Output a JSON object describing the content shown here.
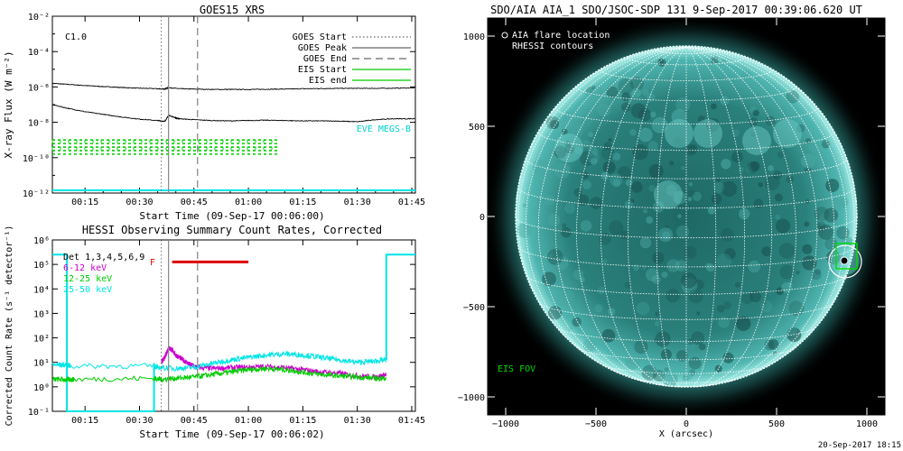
{
  "goes": {
    "title": "GOES15 XRS",
    "ylabel": "X-ray Flux (W m⁻²)",
    "xlabel": "Start Time (09-Sep-17 00:06:00)",
    "class_label": "C1.0",
    "eve_label": "EVE MEGS-B",
    "legend": [
      {
        "label": "GOES Start",
        "style": "dotted",
        "color": "#000000"
      },
      {
        "label": "GOES Peak",
        "style": "solid",
        "color": "#000000"
      },
      {
        "label": "GOES End",
        "style": "dashed",
        "color": "#000000"
      },
      {
        "label": "EIS Start",
        "style": "solid",
        "color": "#00cc00"
      },
      {
        "label": "EIS end",
        "style": "solid",
        "color": "#00cc00"
      }
    ]
  },
  "hessi": {
    "title": "HESSI Observing Summary Count Rates, Corrected",
    "ylabel": "Corrected Count Rate (s⁻¹ detector⁻¹)",
    "xlabel": "Start Time (09-Sep-17 00:06:02)",
    "flag_label": "F",
    "legend": [
      {
        "label": "Det 1,3,4,5,6,9",
        "color": "#000000"
      },
      {
        "label": "6-12 keV",
        "color": "#cc00cc"
      },
      {
        "label": "12-25 keV",
        "color": "#00cc00"
      },
      {
        "label": "25-50 keV",
        "color": "#00e5e5"
      }
    ]
  },
  "aia": {
    "title": "SDO/AIA AIA_1 SDO/JSOC-SDP 131  9-Sep-2017 00:39:06.620 UT",
    "legend1": "AIA flare location",
    "legend2": "RHESSI contours",
    "eis_fov": "EIS FOV",
    "xlabel": "X (arcsec)",
    "timestamp": "20-Sep-2017 18:15",
    "disk_color": "#2f8a86"
  },
  "chart_data": [
    {
      "type": "line",
      "title": "GOES15 XRS",
      "xlabel": "Start Time (09-Sep-17 00:06:00)",
      "ylabel": "X-ray Flux (W m-2)",
      "y_scale": "log",
      "ylim": [
        1e-12,
        0.01
      ],
      "xlim_minutes": [
        6,
        106
      ],
      "x_ticks": [
        "00:15",
        "00:30",
        "00:45",
        "01:00",
        "01:15",
        "01:30",
        "01:45"
      ],
      "y_ticks": [
        "10⁻¹²",
        "10⁻¹⁰",
        "10⁻⁸",
        "10⁻⁶",
        "10⁻⁴",
        "10⁻²"
      ],
      "y_tick_exponents": [
        -12,
        -10,
        -8,
        -6,
        -4,
        -2
      ],
      "series": [
        {
          "name": "long",
          "color": "#000000",
          "x": [
            6,
            10,
            15,
            20,
            25,
            30,
            35,
            37,
            38,
            41,
            45,
            50,
            55,
            60,
            65,
            70,
            75,
            80,
            85,
            90,
            95,
            100,
            106
          ],
          "log10_y": [
            -5.8,
            -5.85,
            -5.92,
            -5.98,
            -6.03,
            -6.07,
            -6.1,
            -6.12,
            -6.04,
            -6.1,
            -6.12,
            -6.14,
            -6.14,
            -6.14,
            -6.13,
            -6.12,
            -6.1,
            -6.09,
            -6.08,
            -6.08,
            -6.08,
            -6.07,
            -6.05
          ]
        },
        {
          "name": "short",
          "color": "#000000",
          "x": [
            6,
            10,
            15,
            20,
            25,
            30,
            35,
            37,
            38,
            40,
            41,
            45,
            50,
            55,
            60,
            65,
            70,
            75,
            80,
            85,
            90,
            95,
            100,
            106
          ],
          "log10_y": [
            -7.0,
            -7.2,
            -7.4,
            -7.55,
            -7.7,
            -7.82,
            -7.9,
            -7.95,
            -7.6,
            -7.75,
            -7.8,
            -7.85,
            -7.9,
            -7.92,
            -7.9,
            -7.88,
            -7.9,
            -7.92,
            -7.92,
            -7.93,
            -7.97,
            -7.85,
            -7.8,
            -7.8
          ]
        }
      ],
      "markers_minutes": {
        "goes_start": 36,
        "goes_peak": 38,
        "goes_end": 46
      },
      "eis_band_log10_y": [
        -9.8,
        -9.0
      ],
      "eis_band_x": [
        6,
        68
      ]
    },
    {
      "type": "line",
      "title": "HESSI Observing Summary Count Rates, Corrected",
      "xlabel": "Start Time (09-Sep-17 00:06:02)",
      "ylabel": "Corrected Count Rate (s-1 detector-1)",
      "y_scale": "log",
      "ylim": [
        0.1,
        1000000.0
      ],
      "xlim_minutes": [
        6,
        106
      ],
      "x_ticks": [
        "00:15",
        "00:30",
        "00:45",
        "01:00",
        "01:15",
        "01:30",
        "01:45"
      ],
      "y_ticks": [
        "10⁻¹",
        "10⁰",
        "10¹",
        "10²",
        "10³",
        "10⁴",
        "10⁵",
        "10⁶"
      ],
      "y_tick_exponents": [
        -1,
        0,
        1,
        2,
        3,
        4,
        5,
        6
      ],
      "series": [
        {
          "name": "6-12 keV",
          "color": "#cc00cc",
          "x": [
            36,
            37,
            38,
            39,
            40,
            42,
            44,
            46,
            50,
            55,
            60,
            65,
            70,
            75,
            80,
            85,
            90,
            95,
            98
          ],
          "log10_y": [
            1.0,
            1.2,
            1.6,
            1.5,
            1.3,
            1.1,
            0.9,
            0.8,
            0.75,
            0.78,
            0.8,
            0.82,
            0.78,
            0.7,
            0.6,
            0.55,
            0.45,
            0.4,
            0.5
          ]
        },
        {
          "name": "12-25 keV",
          "color": "#00cc00",
          "x": [
            6,
            10,
            12,
            34,
            36,
            40,
            45,
            50,
            55,
            60,
            65,
            70,
            75,
            80,
            85,
            90,
            95,
            98
          ],
          "log10_y": [
            0.3,
            0.3,
            0.3,
            0.35,
            0.3,
            0.35,
            0.4,
            0.5,
            0.6,
            0.7,
            0.75,
            0.7,
            0.6,
            0.5,
            0.45,
            0.4,
            0.35,
            0.35
          ]
        },
        {
          "name": "25-50 keV",
          "color": "#00e5e5",
          "x": [
            6,
            10,
            11,
            34,
            35,
            40,
            45,
            50,
            55,
            60,
            65,
            70,
            75,
            80,
            85,
            90,
            95,
            98
          ],
          "log10_y": [
            0.9,
            0.9,
            0.85,
            0.85,
            0.8,
            0.75,
            0.8,
            0.95,
            1.1,
            1.2,
            1.3,
            1.35,
            1.3,
            1.2,
            1.1,
            1.0,
            1.05,
            1.1
          ]
        }
      ],
      "markers_minutes": {
        "goes_start": 36,
        "goes_peak": 38,
        "goes_end": 46
      },
      "flag_bar": {
        "color": "#dd0000",
        "x": [
          39,
          60
        ],
        "log10_y": 5.1
      }
    },
    {
      "type": "map",
      "title": "SDO/AIA AIA_1 SDO/JSOC-SDP 131  9-Sep-2017 00:39:06.620 UT",
      "xlabel": "X (arcsec)",
      "xlim": [
        -1100,
        1100
      ],
      "ylim": [
        -1100,
        1100
      ],
      "x_ticks": [
        -1000,
        -500,
        0,
        500,
        1000
      ],
      "y_ticks": [
        -1000,
        -500,
        0,
        500,
        1000
      ],
      "solar_radius_arcsec": 945,
      "flare_location": [
        875,
        -245
      ],
      "eis_fov_box": {
        "x": [
          830,
          945
        ],
        "y": [
          -290,
          -150
        ]
      },
      "rhessi_contour_center": [
        880,
        -250
      ],
      "rhessi_contour_radius": 90
    }
  ]
}
